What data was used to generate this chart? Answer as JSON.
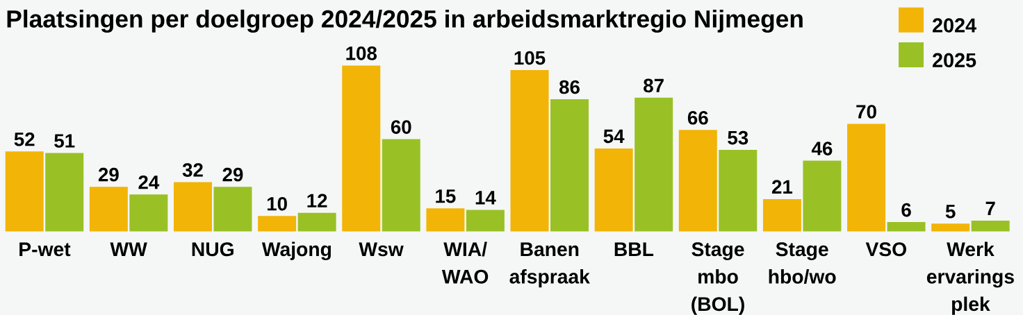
{
  "chart_data": {
    "type": "bar",
    "title": "Plaatsingen per doelgroep 2024/2025 in arbeidsmarktregio Nijmegen",
    "categories": [
      "P-wet",
      "WW",
      "NUG",
      "Wajong",
      "Wsw",
      "WIA/ WAO",
      "Banen afspraak",
      "BBL",
      "Stage mbo (BOL)",
      "Stage hbo/wo",
      "VSO",
      "Werk ervarings plek"
    ],
    "series": [
      {
        "name": "2024",
        "color": "#F2B407",
        "values": [
          52,
          29,
          32,
          10,
          108,
          15,
          105,
          54,
          66,
          21,
          70,
          5
        ]
      },
      {
        "name": "2025",
        "color": "#99C126",
        "values": [
          51,
          24,
          29,
          12,
          60,
          14,
          86,
          87,
          53,
          46,
          6,
          7
        ]
      }
    ],
    "data_labels": true,
    "legend": "top right"
  }
}
